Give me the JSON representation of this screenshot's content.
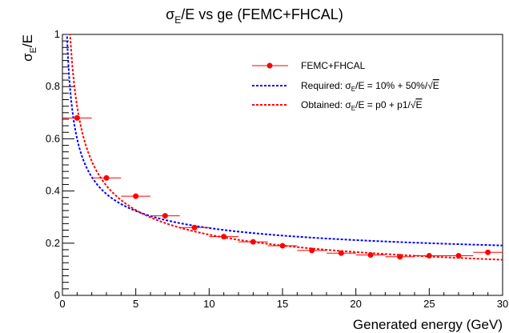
{
  "chart_data": {
    "type": "scatter",
    "title": "σE/E vs ge (FEMC+FHCAL)",
    "title_parts": {
      "main": "σ",
      "sub": "E",
      "rest": "/E vs ge (FEMC+FHCAL)"
    },
    "xlabel": "Generated energy (GeV)",
    "ylabel": "σE/E",
    "ylabel_parts": {
      "main": "σ",
      "sub": "E",
      "rest": "/E"
    },
    "xlim": [
      0,
      30
    ],
    "ylim": [
      0,
      1
    ],
    "x_ticks": [
      0,
      5,
      10,
      15,
      20,
      25,
      30
    ],
    "y_ticks": [
      0,
      0.2,
      0.4,
      0.6,
      0.8,
      1
    ],
    "y_tick_labels": [
      "0",
      "0.2",
      "0.4",
      "0.6",
      "0.8",
      "1"
    ],
    "grid": false,
    "legend_position": "top-right",
    "series": [
      {
        "name": "FEMC+FHCAL",
        "kind": "points_with_xerr",
        "color": "#ff0000",
        "x": [
          1,
          3,
          5,
          7,
          9,
          11,
          13,
          15,
          17,
          19,
          21,
          23,
          25,
          27,
          29
        ],
        "y": [
          0.68,
          0.45,
          0.38,
          0.305,
          0.26,
          0.225,
          0.205,
          0.19,
          0.172,
          0.162,
          0.155,
          0.148,
          0.152,
          0.152,
          0.165
        ],
        "xerr": [
          1,
          1,
          1,
          1,
          1,
          1,
          1,
          1,
          1,
          1,
          1,
          1,
          1,
          1,
          1
        ]
      },
      {
        "name": "Required: σE/E = 10% + 50%/√E",
        "legend_parts": {
          "pre": "Required: σ",
          "sub": "E",
          "post": "/E = 10% + 50%/",
          "root": "E"
        },
        "kind": "curve",
        "color": "#0000ff",
        "formula": "p0 + p1/sqrt(x)",
        "p0": 0.1,
        "p1": 0.5
      },
      {
        "name": "Obtained: σE/E = p0 + p1/√E",
        "legend_parts": {
          "pre": "Obtained: σ",
          "sub": "E",
          "post": "/E = p0 + p1/",
          "root": "E"
        },
        "kind": "curve",
        "color": "#ff0000",
        "formula": "p0 + p1/sqrt(x)",
        "p0": 0.005,
        "p1": 0.72
      }
    ]
  }
}
